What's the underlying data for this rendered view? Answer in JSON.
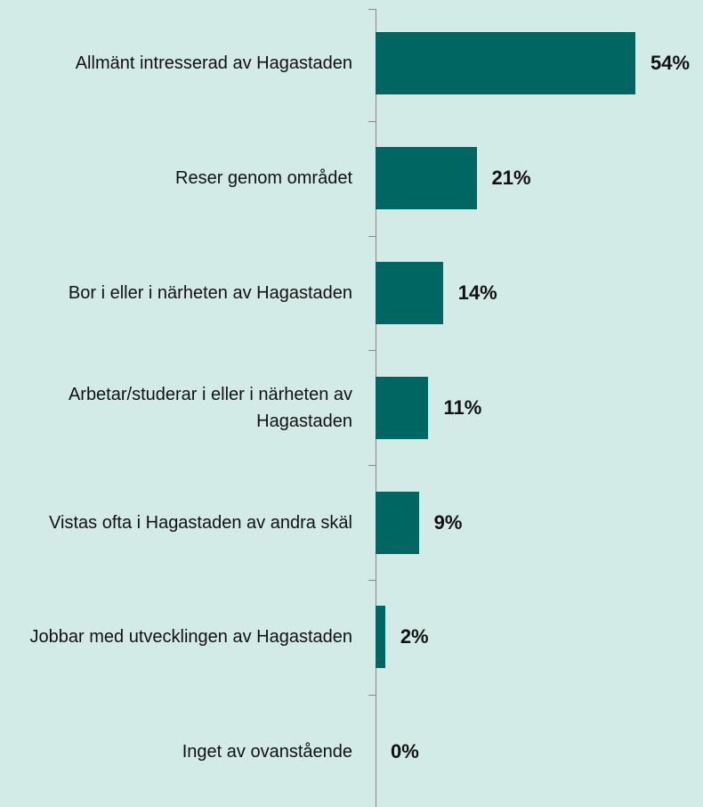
{
  "chart_data": {
    "type": "bar",
    "orientation": "horizontal",
    "categories": [
      "Allmänt intresserad av Hagastaden",
      "Reser genom området",
      "Bor i eller i närheten av Hagastaden",
      "Arbetar/studerar i eller i närheten av Hagastaden",
      "Vistas ofta i Hagastaden av andra skäl",
      "Jobbar med utvecklingen av Hagastaden",
      "Inget av ovanstående"
    ],
    "values": [
      54,
      21,
      14,
      11,
      9,
      2,
      0
    ],
    "value_labels": [
      "54%",
      "21%",
      "14%",
      "11%",
      "9%",
      "2%",
      "0%"
    ],
    "color": "#006661"
  }
}
